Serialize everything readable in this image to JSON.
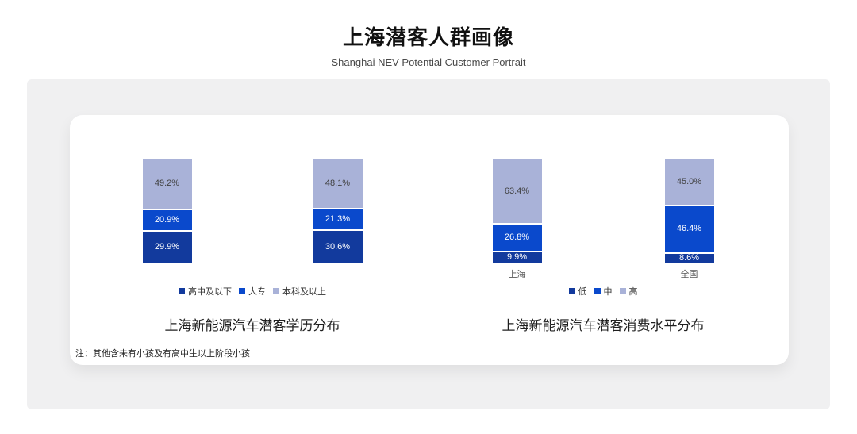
{
  "page": {
    "title": "上海潜客人群画像",
    "subtitle": "Shanghai NEV Potential Customer Portrait",
    "note": "注：其他含未有小孩及有高中生以上阶段小孩"
  },
  "colors": {
    "dark_blue": "#123a9d",
    "mid_blue": "#0a49cc",
    "light_blue": "#a9b2d8",
    "panel_bg": "#f0f0f1",
    "axis_line": "#d9d9d9"
  },
  "chart_data": [
    {
      "type": "bar",
      "stacked": true,
      "title": "上海新能源汽车潜客学历分布",
      "categories": [
        "",
        ""
      ],
      "show_category_labels": false,
      "unit": "%",
      "ylim": [
        0,
        100
      ],
      "legend_position": "bottom",
      "grid": false,
      "series": [
        {
          "name": "高中及以下",
          "values": [
            29.9,
            30.6
          ],
          "color": "#123a9d",
          "label_color": "#ffffff"
        },
        {
          "name": "大专",
          "values": [
            20.9,
            21.3
          ],
          "color": "#0a49cc",
          "label_color": "#ffffff"
        },
        {
          "name": "本科及以上",
          "values": [
            49.2,
            48.1
          ],
          "color": "#a9b2d8",
          "label_color": "#404040"
        }
      ]
    },
    {
      "type": "bar",
      "stacked": true,
      "title": "上海新能源汽车潜客消费水平分布",
      "categories": [
        "上海",
        "全国"
      ],
      "show_category_labels": true,
      "unit": "%",
      "ylim": [
        0,
        100
      ],
      "legend_position": "bottom",
      "grid": false,
      "series": [
        {
          "name": "低",
          "values": [
            9.9,
            8.6
          ],
          "color": "#123a9d",
          "label_color": "#ffffff"
        },
        {
          "name": "中",
          "values": [
            26.8,
            46.4
          ],
          "color": "#0a49cc",
          "label_color": "#ffffff"
        },
        {
          "name": "高",
          "values": [
            63.4,
            45.0
          ],
          "color": "#a9b2d8",
          "label_color": "#404040"
        }
      ]
    }
  ]
}
